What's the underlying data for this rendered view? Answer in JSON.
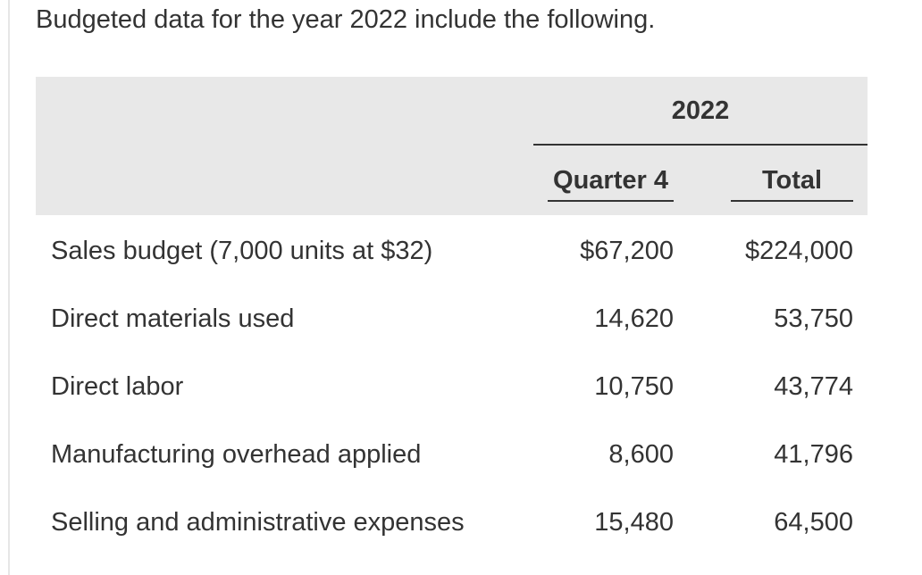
{
  "intro": "Budgeted data for the year 2022 include the following.",
  "table": {
    "year_header": "2022",
    "columns": [
      "Quarter 4",
      "Total"
    ],
    "rows": [
      {
        "label": "Sales budget (7,000 units at $32)",
        "quarter4": "$67,200",
        "total": "$224,000"
      },
      {
        "label": "Direct materials used",
        "quarter4": "14,620",
        "total": "53,750"
      },
      {
        "label": "Direct labor",
        "quarter4": "10,750",
        "total": "43,774"
      },
      {
        "label": "Manufacturing overhead applied",
        "quarter4": "8,600",
        "total": "41,796"
      },
      {
        "label": "Selling and administrative expenses",
        "quarter4": "15,480",
        "total": "64,500"
      }
    ]
  },
  "colors": {
    "text": "#333333",
    "header_background": "#e8e8e8",
    "rule": "#333333"
  }
}
